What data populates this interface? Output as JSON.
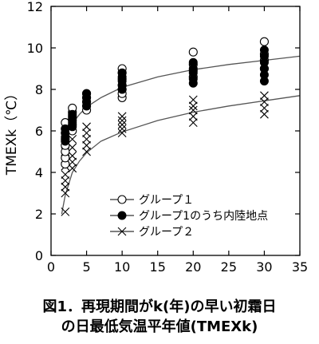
{
  "chart_data": {
    "type": "scatter",
    "xlim": [
      0,
      35
    ],
    "ylim": [
      0,
      12
    ],
    "x_ticks": [
      "0",
      "5",
      "10",
      "15",
      "20",
      "25",
      "30",
      "35"
    ],
    "y_ticks": [
      "0",
      "2",
      "4",
      "6",
      "8",
      "10",
      "12"
    ],
    "ylabel": "TMEXk（℃）",
    "xlabel": "",
    "grid": false,
    "legend_position": "bottom-right",
    "series": [
      {
        "name": "グループ１",
        "marker": "open-circle",
        "points": [
          [
            2,
            4.4
          ],
          [
            2,
            4.7
          ],
          [
            2,
            5.0
          ],
          [
            2,
            5.3
          ],
          [
            2,
            5.6
          ],
          [
            2,
            5.9
          ],
          [
            2,
            6.1
          ],
          [
            2,
            6.4
          ],
          [
            3,
            6.0
          ],
          [
            3,
            6.3
          ],
          [
            3,
            6.5
          ],
          [
            3,
            6.7
          ],
          [
            3,
            6.9
          ],
          [
            3,
            7.1
          ],
          [
            5,
            7.0
          ],
          [
            5,
            7.2
          ],
          [
            5,
            7.4
          ],
          [
            5,
            7.6
          ],
          [
            5,
            7.8
          ],
          [
            10,
            7.6
          ],
          [
            10,
            7.8
          ],
          [
            10,
            8.0
          ],
          [
            10,
            8.2
          ],
          [
            10,
            8.5
          ],
          [
            10,
            8.8
          ],
          [
            10,
            9.0
          ],
          [
            20,
            8.6
          ],
          [
            20,
            8.9
          ],
          [
            20,
            9.2
          ],
          [
            20,
            9.8
          ],
          [
            30,
            9.0
          ],
          [
            30,
            9.4
          ],
          [
            30,
            9.7
          ],
          [
            30,
            10.3
          ]
        ]
      },
      {
        "name": "グループ1のうち内陸地点",
        "marker": "filled-circle",
        "points": [
          [
            2,
            5.5
          ],
          [
            2,
            5.7
          ],
          [
            2,
            5.9
          ],
          [
            2,
            6.1
          ],
          [
            3,
            6.2
          ],
          [
            3,
            6.4
          ],
          [
            3,
            6.6
          ],
          [
            3,
            6.8
          ],
          [
            5,
            7.2
          ],
          [
            5,
            7.4
          ],
          [
            5,
            7.6
          ],
          [
            5,
            7.8
          ],
          [
            10,
            8.0
          ],
          [
            10,
            8.2
          ],
          [
            10,
            8.4
          ],
          [
            10,
            8.6
          ],
          [
            10,
            8.8
          ],
          [
            20,
            8.3
          ],
          [
            20,
            8.5
          ],
          [
            20,
            8.8
          ],
          [
            20,
            9.0
          ],
          [
            20,
            9.3
          ],
          [
            30,
            8.4
          ],
          [
            30,
            8.7
          ],
          [
            30,
            9.0
          ],
          [
            30,
            9.3
          ],
          [
            30,
            9.6
          ],
          [
            30,
            9.9
          ]
        ]
      },
      {
        "name": "グループ２",
        "marker": "x",
        "points": [
          [
            2,
            2.1
          ],
          [
            2,
            3.0
          ],
          [
            2,
            3.3
          ],
          [
            2,
            3.6
          ],
          [
            2,
            3.9
          ],
          [
            2,
            4.3
          ],
          [
            2,
            4.6
          ],
          [
            2,
            5.0
          ],
          [
            3,
            4.2
          ],
          [
            3,
            4.5
          ],
          [
            3,
            4.8
          ],
          [
            3,
            5.2
          ],
          [
            3,
            5.6
          ],
          [
            5,
            5.0
          ],
          [
            5,
            5.3
          ],
          [
            5,
            5.6
          ],
          [
            5,
            5.9
          ],
          [
            5,
            6.2
          ],
          [
            10,
            5.9
          ],
          [
            10,
            6.1
          ],
          [
            10,
            6.3
          ],
          [
            10,
            6.5
          ],
          [
            10,
            6.7
          ],
          [
            20,
            6.4
          ],
          [
            20,
            6.7
          ],
          [
            20,
            7.0
          ],
          [
            20,
            7.2
          ],
          [
            20,
            7.5
          ],
          [
            30,
            6.8
          ],
          [
            30,
            7.1
          ],
          [
            30,
            7.4
          ],
          [
            30,
            7.7
          ]
        ]
      }
    ],
    "fit_curves": [
      {
        "series": "グループ１",
        "x": [
          1.5,
          2,
          3,
          4,
          5,
          7,
          10,
          15,
          20,
          25,
          30,
          35
        ],
        "y": [
          5.3,
          5.75,
          6.35,
          6.8,
          7.15,
          7.6,
          8.1,
          8.6,
          8.95,
          9.2,
          9.4,
          9.6
        ]
      },
      {
        "series": "グループ２",
        "x": [
          1.5,
          2,
          3,
          4,
          5,
          7,
          10,
          15,
          20,
          25,
          30,
          35
        ],
        "y": [
          2.0,
          2.9,
          4.0,
          4.55,
          4.95,
          5.5,
          5.95,
          6.5,
          6.9,
          7.2,
          7.45,
          7.7
        ]
      }
    ]
  },
  "legend": {
    "group1": "グループ１",
    "group1_inland": "グループ1のうち内陸地点",
    "group2": "グループ２"
  },
  "caption": {
    "line1": "図1．再現期間がk(年)の早い初霜日",
    "line2": "の日最低気温平年値(TMEXk)"
  }
}
